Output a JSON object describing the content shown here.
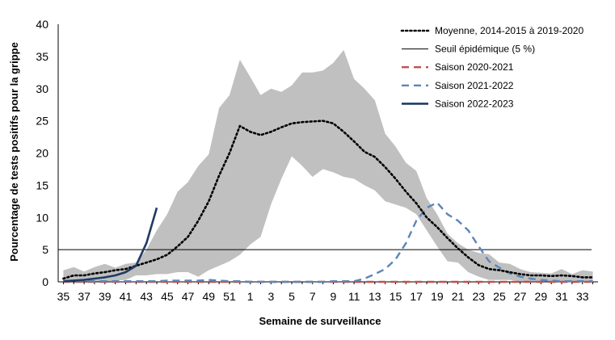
{
  "chart_data": {
    "type": "line",
    "title": "",
    "xlabel": "Semaine de surveillance",
    "ylabel": "Pourcentage de tests positifs pour la grippe",
    "ylim": [
      0,
      40
    ],
    "yticks": [
      0,
      5,
      10,
      15,
      20,
      25,
      30,
      35,
      40
    ],
    "grid": false,
    "legend_position": "top-right",
    "weeks": [
      35,
      36,
      37,
      38,
      39,
      40,
      41,
      42,
      43,
      44,
      45,
      46,
      47,
      48,
      49,
      50,
      51,
      52,
      1,
      2,
      3,
      4,
      5,
      6,
      7,
      8,
      9,
      10,
      11,
      12,
      13,
      14,
      15,
      16,
      17,
      18,
      19,
      20,
      21,
      22,
      23,
      24,
      25,
      26,
      27,
      28,
      29,
      30,
      31,
      32,
      33,
      34
    ],
    "xtick_labels": [
      "35",
      "37",
      "39",
      "41",
      "43",
      "45",
      "47",
      "49",
      "51",
      "1",
      "3",
      "5",
      "7",
      "9",
      "11",
      "13",
      "15",
      "17",
      "19",
      "21",
      "23",
      "25",
      "27",
      "29",
      "31",
      "33"
    ],
    "range_band": {
      "upper": [
        1.8,
        2.3,
        1.6,
        2.3,
        2.8,
        2.2,
        2.8,
        3.0,
        5.0,
        8.0,
        10.5,
        14.0,
        15.5,
        18.0,
        19.8,
        27.0,
        29.0,
        34.5,
        31.8,
        29.0,
        30.0,
        29.5,
        30.5,
        32.5,
        32.5,
        32.8,
        34.0,
        36.0,
        31.5,
        30.0,
        28.2,
        23.0,
        21.0,
        18.5,
        17.2,
        13.0,
        10.5,
        7.5,
        6.0,
        5.0,
        4.5,
        4.3,
        3.0,
        2.8,
        2.0,
        1.5,
        1.4,
        1.3,
        2.0,
        1.2,
        1.8,
        1.6
      ],
      "lower": [
        0.0,
        0.0,
        0.0,
        0.0,
        0.0,
        0.2,
        0.3,
        1.0,
        1.0,
        1.2,
        1.2,
        1.5,
        1.5,
        0.8,
        1.8,
        2.5,
        3.2,
        4.2,
        5.8,
        7.0,
        12.0,
        16.0,
        19.5,
        18.0,
        16.3,
        17.5,
        17.0,
        16.3,
        16.0,
        15.0,
        14.2,
        12.5,
        12.0,
        11.5,
        10.5,
        8.0,
        5.5,
        3.2,
        3.0,
        1.5,
        0.8,
        0.3,
        0.3,
        0.3,
        0.1,
        0.1,
        0.1,
        0.1,
        0.1,
        0.1,
        0.1,
        0.1
      ]
    },
    "series": [
      {
        "name": "Moyenne, 2014-2015 à 2019-2020",
        "style": "dotted",
        "color": "#000000",
        "values": [
          0.5,
          1.0,
          1.0,
          1.3,
          1.5,
          1.8,
          2.0,
          2.5,
          3.0,
          3.5,
          4.2,
          5.5,
          7.0,
          9.5,
          12.5,
          16.5,
          20.0,
          24.2,
          23.3,
          22.8,
          23.3,
          24.0,
          24.6,
          24.8,
          24.9,
          25.0,
          24.6,
          23.3,
          21.8,
          20.2,
          19.4,
          17.8,
          16.0,
          14.0,
          12.2,
          10.0,
          8.5,
          6.8,
          5.2,
          3.8,
          2.6,
          2.0,
          1.8,
          1.5,
          1.2,
          1.0,
          1.0,
          0.9,
          1.0,
          0.9,
          0.7,
          0.7
        ]
      },
      {
        "name": "Seuil épidémique (5 %)",
        "style": "solid-thin",
        "color": "#000000",
        "values": [
          5,
          5,
          5,
          5,
          5,
          5,
          5,
          5,
          5,
          5,
          5,
          5,
          5,
          5,
          5,
          5,
          5,
          5,
          5,
          5,
          5,
          5,
          5,
          5,
          5,
          5,
          5,
          5,
          5,
          5,
          5,
          5,
          5,
          5,
          5,
          5,
          5,
          5,
          5,
          5,
          5,
          5,
          5,
          5,
          5,
          5,
          5,
          5,
          5,
          5,
          5,
          5
        ]
      },
      {
        "name": "Saison 2020-2021",
        "style": "dashed",
        "color": "#c0504d",
        "values": [
          0,
          0,
          0,
          0,
          0,
          0,
          0,
          0,
          0,
          0,
          0,
          0,
          0,
          0,
          0,
          0,
          0,
          0,
          0,
          0,
          0,
          0,
          0,
          0,
          0,
          0,
          0,
          0,
          0,
          0,
          0,
          0,
          0,
          0,
          0,
          0,
          0,
          0,
          0,
          0,
          0,
          0,
          0,
          0,
          0,
          0,
          0,
          0,
          0,
          0,
          0,
          0
        ]
      },
      {
        "name": "Saison 2021-2022",
        "style": "dashed",
        "color": "#5b86b8",
        "values": [
          0.1,
          0.1,
          0.1,
          0.1,
          0.1,
          0.1,
          0.1,
          0.1,
          0.1,
          0.1,
          0.2,
          0.2,
          0.2,
          0.2,
          0.3,
          0.2,
          0.1,
          0.1,
          0.0,
          0.0,
          0.0,
          0.0,
          0.0,
          0.0,
          0.0,
          0.0,
          0.1,
          0.1,
          0.1,
          0.5,
          1.2,
          2.0,
          3.5,
          6.0,
          9.5,
          11.5,
          12.3,
          10.5,
          9.5,
          8.0,
          5.5,
          3.2,
          2.2,
          1.3,
          0.8,
          0.5,
          0.3,
          0.2,
          0.1,
          0.1,
          0.1,
          0.1
        ]
      },
      {
        "name": "Saison 2022-2023",
        "style": "solid-thick",
        "color": "#1f3b63",
        "values": [
          0.1,
          0.2,
          0.3,
          0.5,
          0.7,
          1.0,
          1.5,
          2.5,
          6.0,
          11.5
        ]
      }
    ]
  }
}
